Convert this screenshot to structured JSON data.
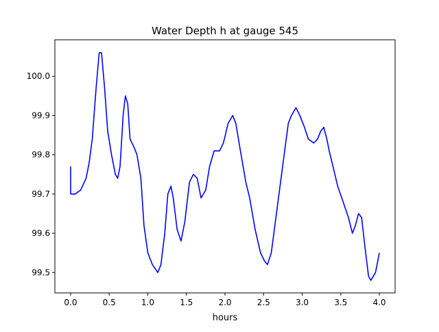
{
  "chart_data": {
    "type": "line",
    "title": "Water Depth h at gauge 545",
    "xlabel": "hours",
    "ylabel": "",
    "xlim": [
      -0.204,
      4.204
    ],
    "ylim": [
      99.448,
      100.093
    ],
    "xticks": [
      0.0,
      0.5,
      1.0,
      1.5,
      2.0,
      2.5,
      3.0,
      3.5,
      4.0
    ],
    "xtick_labels": [
      "0.0",
      "0.5",
      "1.0",
      "1.5",
      "2.0",
      "2.5",
      "3.0",
      "3.5",
      "4.0"
    ],
    "yticks": [
      99.5,
      99.6,
      99.7,
      99.8,
      99.9,
      100.0
    ],
    "ytick_labels": [
      "99.5",
      "99.6",
      "99.7",
      "99.8",
      "99.9",
      "100.0"
    ],
    "grid": false,
    "series": [
      {
        "name": "h",
        "color": "#0000ff",
        "x": [
          0,
          0,
          0.06,
          0.13,
          0.2,
          0.24,
          0.28,
          0.33,
          0.37,
          0.4,
          0.44,
          0.48,
          0.53,
          0.58,
          0.61,
          0.64,
          0.68,
          0.71,
          0.74,
          0.77,
          0.82,
          0.86,
          0.91,
          0.95,
          1.0,
          1.06,
          1.13,
          1.17,
          1.22,
          1.26,
          1.3,
          1.33,
          1.38,
          1.43,
          1.48,
          1.54,
          1.59,
          1.64,
          1.69,
          1.75,
          1.8,
          1.86,
          1.89,
          1.93,
          1.98,
          2.04,
          2.1,
          2.14,
          2.2,
          2.27,
          2.32,
          2.39,
          2.46,
          2.51,
          2.55,
          2.6,
          2.68,
          2.76,
          2.82,
          2.86,
          2.92,
          2.97,
          3.03,
          3.08,
          3.15,
          3.2,
          3.24,
          3.28,
          3.32,
          3.35,
          3.4,
          3.46,
          3.53,
          3.6,
          3.65,
          3.69,
          3.73,
          3.77,
          3.81,
          3.86,
          3.89,
          3.95,
          3.97,
          4.0
        ],
        "y": [
          99.77,
          99.7,
          99.7,
          99.71,
          99.74,
          99.78,
          99.84,
          99.97,
          100.06,
          100.06,
          99.97,
          99.86,
          99.8,
          99.75,
          99.74,
          99.77,
          99.9,
          99.95,
          99.93,
          99.84,
          99.82,
          99.8,
          99.74,
          99.62,
          99.55,
          99.52,
          99.5,
          99.52,
          99.6,
          99.7,
          99.72,
          99.69,
          99.61,
          99.58,
          99.63,
          99.73,
          99.75,
          99.74,
          99.69,
          99.71,
          99.77,
          99.81,
          99.81,
          99.81,
          99.83,
          99.88,
          99.9,
          99.88,
          99.81,
          99.73,
          99.69,
          99.61,
          99.55,
          99.53,
          99.52,
          99.55,
          99.67,
          99.79,
          99.88,
          99.9,
          99.92,
          99.9,
          99.87,
          99.84,
          99.83,
          99.84,
          99.86,
          99.87,
          99.84,
          99.81,
          99.77,
          99.72,
          99.68,
          99.64,
          99.6,
          99.62,
          99.65,
          99.64,
          99.57,
          99.49,
          99.48,
          99.5,
          99.52,
          99.55
        ]
      }
    ]
  }
}
